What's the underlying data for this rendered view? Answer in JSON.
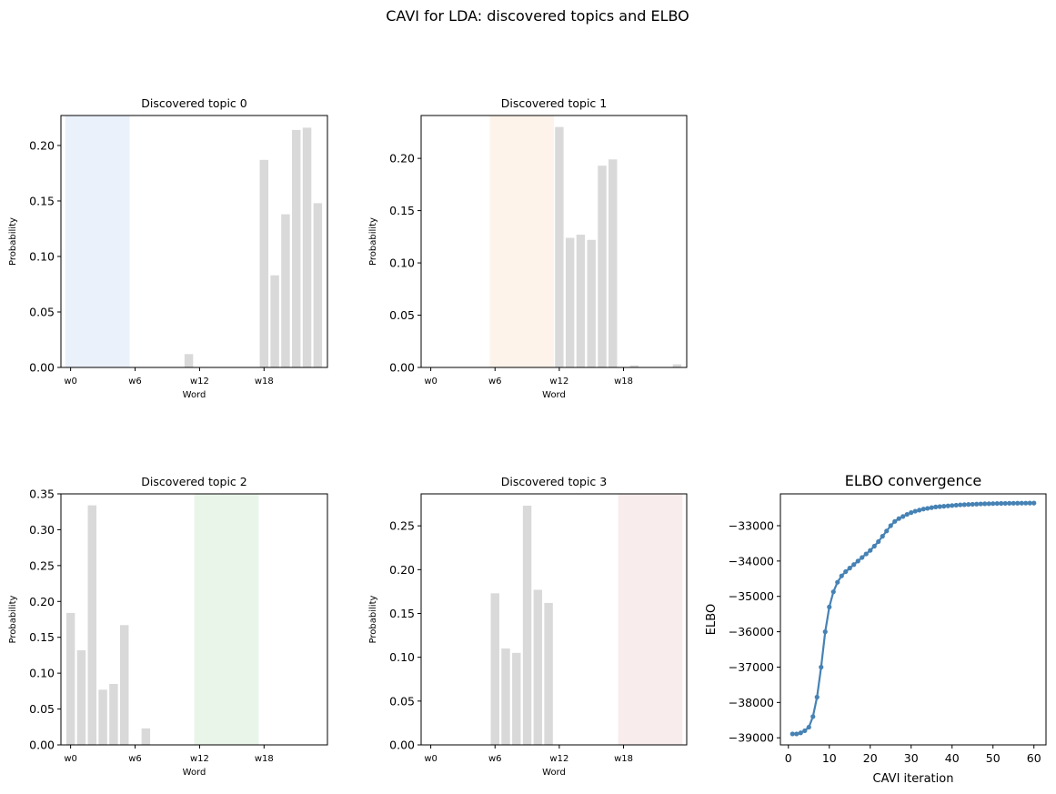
{
  "figure_title": "CAVI for LDA: discovered topics and ELBO",
  "colors": {
    "bar": "#d9d9d9",
    "line": "#4682b4",
    "band_topic_0": "#eaf1fb",
    "band_topic_1": "#fdf3ea",
    "band_topic_2": "#eaf5ea",
    "band_topic_3": "#f9ecec"
  },
  "chart_data": [
    {
      "type": "bar",
      "title": "Discovered topic 0",
      "xlabel": "Word",
      "ylabel": "Probability",
      "categories": [
        "w0",
        "w1",
        "w2",
        "w3",
        "w4",
        "w5",
        "w6",
        "w7",
        "w8",
        "w9",
        "w10",
        "w11",
        "w12",
        "w13",
        "w14",
        "w15",
        "w16",
        "w17",
        "w18",
        "w19",
        "w20",
        "w21",
        "w22",
        "w23"
      ],
      "xtick_labels": [
        "w0",
        "w6",
        "w12",
        "w18"
      ],
      "values": [
        0,
        0,
        0,
        0,
        0,
        0,
        0,
        0,
        0,
        0,
        0,
        0.012,
        0,
        0,
        0,
        0,
        0,
        0,
        0.187,
        0.083,
        0.138,
        0.214,
        0.216,
        0.148
      ],
      "ylim": [
        0,
        0.227
      ],
      "yticks": [
        0.0,
        0.05,
        0.1,
        0.15,
        0.2
      ],
      "ytick_labels": [
        "0.00",
        "0.05",
        "0.10",
        "0.15",
        "0.20"
      ],
      "highlight_band": [
        "w0",
        "w5"
      ]
    },
    {
      "type": "bar",
      "title": "Discovered topic 1",
      "xlabel": "Word",
      "ylabel": "Probability",
      "categories": [
        "w0",
        "w1",
        "w2",
        "w3",
        "w4",
        "w5",
        "w6",
        "w7",
        "w8",
        "w9",
        "w10",
        "w11",
        "w12",
        "w13",
        "w14",
        "w15",
        "w16",
        "w17",
        "w18",
        "w19",
        "w20",
        "w21",
        "w22",
        "w23"
      ],
      "xtick_labels": [
        "w0",
        "w6",
        "w12",
        "w18"
      ],
      "values": [
        0,
        0,
        0,
        0,
        0,
        0,
        0,
        0,
        0,
        0,
        0,
        0,
        0.23,
        0.124,
        0.127,
        0.122,
        0.193,
        0.199,
        0,
        0.002,
        0,
        0,
        0,
        0.003
      ],
      "ylim": [
        0,
        0.241
      ],
      "yticks": [
        0.0,
        0.05,
        0.1,
        0.15,
        0.2
      ],
      "ytick_labels": [
        "0.00",
        "0.05",
        "0.10",
        "0.15",
        "0.20"
      ],
      "highlight_band": [
        "w6",
        "w11"
      ]
    },
    {
      "type": "bar",
      "title": "Discovered topic 2",
      "xlabel": "Word",
      "ylabel": "Probability",
      "categories": [
        "w0",
        "w1",
        "w2",
        "w3",
        "w4",
        "w5",
        "w6",
        "w7",
        "w8",
        "w9",
        "w10",
        "w11",
        "w12",
        "w13",
        "w14",
        "w15",
        "w16",
        "w17",
        "w18",
        "w19",
        "w20",
        "w21",
        "w22",
        "w23"
      ],
      "xtick_labels": [
        "w0",
        "w6",
        "w12",
        "w18"
      ],
      "values": [
        0.184,
        0.132,
        0.334,
        0.077,
        0.085,
        0.167,
        0,
        0.023,
        0,
        0,
        0,
        0,
        0,
        0,
        0,
        0,
        0,
        0,
        0,
        0,
        0,
        0,
        0,
        0
      ],
      "ylim": [
        0,
        0.35
      ],
      "yticks": [
        0.0,
        0.05,
        0.1,
        0.15,
        0.2,
        0.25,
        0.3,
        0.35
      ],
      "ytick_labels": [
        "0.00",
        "0.05",
        "0.10",
        "0.15",
        "0.20",
        "0.25",
        "0.30",
        "0.35"
      ],
      "highlight_band": [
        "w12",
        "w17"
      ]
    },
    {
      "type": "bar",
      "title": "Discovered topic 3",
      "xlabel": "Word",
      "ylabel": "Probability",
      "categories": [
        "w0",
        "w1",
        "w2",
        "w3",
        "w4",
        "w5",
        "w6",
        "w7",
        "w8",
        "w9",
        "w10",
        "w11",
        "w12",
        "w13",
        "w14",
        "w15",
        "w16",
        "w17",
        "w18",
        "w19",
        "w20",
        "w21",
        "w22",
        "w23"
      ],
      "xtick_labels": [
        "w0",
        "w6",
        "w12",
        "w18"
      ],
      "values": [
        0,
        0,
        0,
        0,
        0,
        0,
        0.173,
        0.11,
        0.105,
        0.273,
        0.177,
        0.162,
        0,
        0,
        0,
        0,
        0,
        0,
        0,
        0,
        0,
        0,
        0,
        0
      ],
      "ylim": [
        0,
        0.2865
      ],
      "yticks": [
        0.0,
        0.05,
        0.1,
        0.15,
        0.2,
        0.25
      ],
      "ytick_labels": [
        "0.00",
        "0.05",
        "0.10",
        "0.15",
        "0.20",
        "0.25"
      ],
      "highlight_band": [
        "w18",
        "w23"
      ]
    },
    {
      "type": "line",
      "title": "ELBO convergence",
      "xlabel": "CAVI iteration",
      "ylabel": "ELBO",
      "x": [
        1,
        2,
        3,
        4,
        5,
        6,
        7,
        8,
        9,
        10,
        11,
        12,
        13,
        14,
        15,
        16,
        17,
        18,
        19,
        20,
        21,
        22,
        23,
        24,
        25,
        26,
        27,
        28,
        29,
        30,
        31,
        32,
        33,
        34,
        35,
        36,
        37,
        38,
        39,
        40,
        41,
        42,
        43,
        44,
        45,
        46,
        47,
        48,
        49,
        50,
        51,
        52,
        53,
        54,
        55,
        56,
        57,
        58,
        59,
        60
      ],
      "y": [
        -38890,
        -38890,
        -38860,
        -38800,
        -38700,
        -38400,
        -37850,
        -37000,
        -36000,
        -35300,
        -34870,
        -34600,
        -34420,
        -34300,
        -34200,
        -34100,
        -34000,
        -33900,
        -33800,
        -33700,
        -33580,
        -33450,
        -33300,
        -33150,
        -33000,
        -32880,
        -32800,
        -32740,
        -32680,
        -32630,
        -32590,
        -32560,
        -32530,
        -32510,
        -32490,
        -32470,
        -32460,
        -32450,
        -32440,
        -32430,
        -32420,
        -32410,
        -32405,
        -32400,
        -32395,
        -32390,
        -32385,
        -32380,
        -32378,
        -32375,
        -32372,
        -32370,
        -32368,
        -32366,
        -32365,
        -32364,
        -32363,
        -32362,
        -32361,
        -32360
      ],
      "xlim": [
        -1.95,
        62.95
      ],
      "ylim": [
        -39200,
        -32100
      ],
      "xticks": [
        0,
        10,
        20,
        30,
        40,
        50,
        60
      ],
      "xtick_labels": [
        "0",
        "10",
        "20",
        "30",
        "40",
        "50",
        "60"
      ],
      "yticks": [
        -39000,
        -38000,
        -37000,
        -36000,
        -35000,
        -34000,
        -33000
      ],
      "ytick_labels": [
        "−39000",
        "−38000",
        "−37000",
        "−36000",
        "−35000",
        "−34000",
        "−33000"
      ]
    }
  ]
}
